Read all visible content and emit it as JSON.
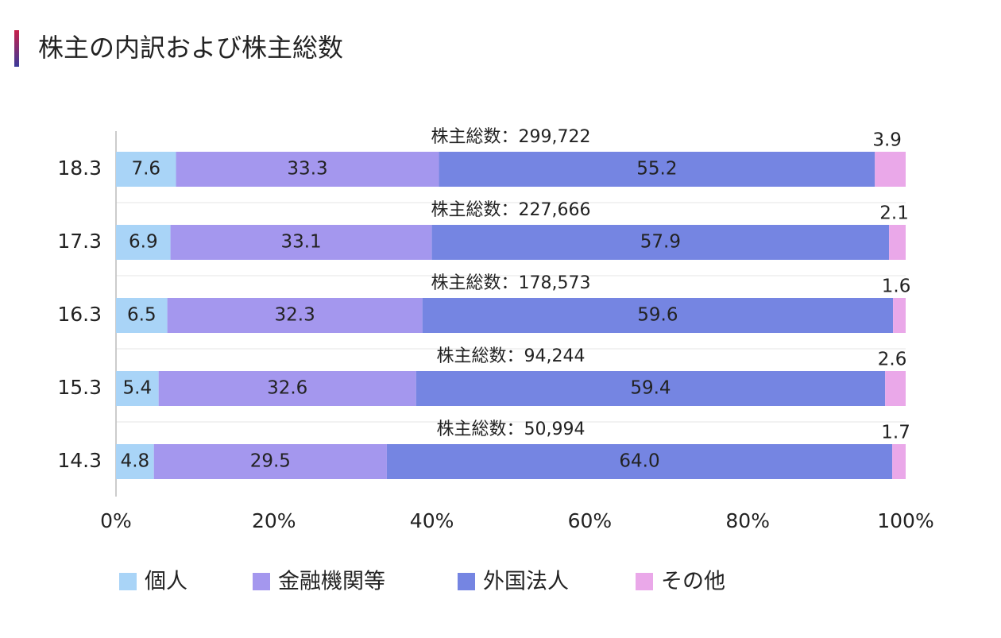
{
  "title": "株主の内訳および株主総数",
  "chart_data": {
    "type": "stacked-bar-horizontal",
    "categories": [
      "18.3",
      "17.3",
      "16.3",
      "15.3",
      "14.3"
    ],
    "annotations": [
      "株主総数：299,722",
      "株主総数：227,666",
      "株主総数：178,573",
      "株主総数：94,244",
      "株主総数：50,994"
    ],
    "series": [
      {
        "name": "個人",
        "color": "#a9d4f7",
        "values": [
          7.6,
          6.9,
          6.5,
          5.4,
          4.8
        ],
        "value_labels": [
          "7.6",
          "6.9",
          "6.5",
          "5.4",
          "4.8"
        ]
      },
      {
        "name": "金融機関等",
        "color": "#a497ee",
        "values": [
          33.3,
          33.1,
          32.3,
          32.6,
          29.5
        ],
        "value_labels": [
          "33.3",
          "33.1",
          "32.3",
          "32.6",
          "29.5"
        ]
      },
      {
        "name": "外国法人",
        "color": "#7585e2",
        "values": [
          55.2,
          57.9,
          59.6,
          59.4,
          64.0
        ],
        "value_labels": [
          "55.2",
          "57.9",
          "59.6",
          "59.4",
          "64.0"
        ]
      },
      {
        "name": "その他",
        "color": "#eaa8e9",
        "values": [
          3.9,
          2.1,
          1.6,
          2.6,
          1.7
        ],
        "value_labels": [
          "3.9",
          "2.1",
          "1.6",
          "2.6",
          "1.7"
        ]
      }
    ],
    "xlim": [
      0,
      100
    ],
    "xticks": [
      {
        "value": 0,
        "label": "0%"
      },
      {
        "value": 20,
        "label": "20%"
      },
      {
        "value": 40,
        "label": "40%"
      },
      {
        "value": 60,
        "label": "60%"
      },
      {
        "value": 80,
        "label": "80%"
      },
      {
        "value": 100,
        "label": "100%"
      }
    ]
  }
}
